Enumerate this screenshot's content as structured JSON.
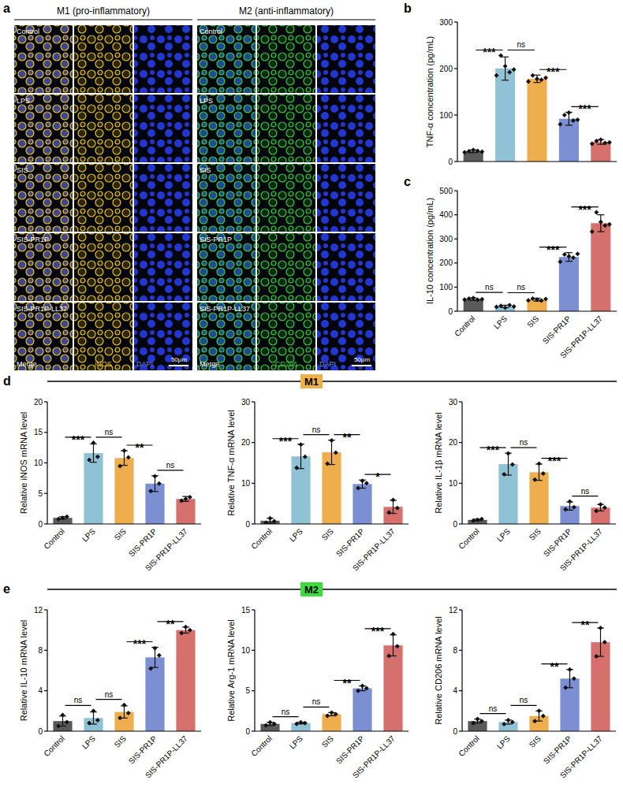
{
  "figure": {
    "letters": [
      "a",
      "b",
      "c",
      "d",
      "e"
    ],
    "groups": [
      "M1",
      "M2"
    ]
  },
  "panel_a": {
    "headers": [
      "M1 (pro-inflammatory)",
      "M2 (anti-inflammatory)"
    ],
    "rows": [
      "Control",
      "LPS",
      "SIS",
      "SIS-PR1P",
      "SIS-PR1P-LL37"
    ],
    "merge": "Merge",
    "markers": [
      "iNOS",
      "CD206"
    ],
    "dapi": "DAPI",
    "scale_bar": "50μm"
  },
  "chart_data": [
    {
      "type": "bar",
      "ylabel": "TNF-α concentration (pg/mL)",
      "categories": [
        "Control",
        "LPS",
        "SIS",
        "SIS-PR1P",
        "SIS-PR1P-LL37"
      ],
      "values": [
        22,
        200,
        178,
        92,
        42
      ],
      "errors": [
        3,
        25,
        8,
        14,
        5
      ],
      "points": [
        [
          20,
          22,
          25,
          23,
          21
        ],
        [
          185,
          228,
          205,
          192,
          198
        ],
        [
          172,
          185,
          178,
          176,
          180
        ],
        [
          80,
          100,
          105,
          88,
          90
        ],
        [
          38,
          44,
          47,
          40,
          41
        ]
      ],
      "colors": [
        "#5a5a5a",
        "#8fc2d5",
        "#efae4e",
        "#7c8fd3",
        "#d5706c"
      ],
      "ylim": [
        0,
        300
      ],
      "yticks": [
        0,
        100,
        200,
        300
      ],
      "tick_labels": "y",
      "significance": [
        {
          "from": "Control",
          "to": "LPS",
          "label": "***"
        },
        {
          "from": "LPS",
          "to": "SIS",
          "label": "ns"
        },
        {
          "from": "SIS",
          "to": "SIS-PR1P",
          "label": "***"
        },
        {
          "from": "SIS-PR1P",
          "to": "SIS-PR1P-LL37",
          "label": "***"
        }
      ]
    },
    {
      "type": "bar",
      "ylabel": "IL-10 concentration (pg/mL)",
      "categories": [
        "Control",
        "LPS",
        "SIS",
        "SIS-PR1P",
        "SIS-PR1P-LL37"
      ],
      "values": [
        50,
        20,
        48,
        225,
        365
      ],
      "errors": [
        5,
        5,
        6,
        18,
        35
      ],
      "points": [
        [
          48,
          52,
          55,
          47,
          50
        ],
        [
          18,
          22,
          15,
          25,
          20
        ],
        [
          45,
          52,
          48,
          44,
          51
        ],
        [
          205,
          235,
          228,
          222,
          238
        ],
        [
          330,
          410,
          370,
          355,
          360
        ]
      ],
      "colors": [
        "#5a5a5a",
        "#8fc2d5",
        "#efae4e",
        "#7c8fd3",
        "#d5706c"
      ],
      "ylim": [
        0,
        500
      ],
      "yticks": [
        0,
        100,
        200,
        300,
        400,
        500
      ],
      "significance": [
        {
          "from": "Control",
          "to": "LPS",
          "label": "ns"
        },
        {
          "from": "LPS",
          "to": "SIS",
          "label": "ns"
        },
        {
          "from": "SIS",
          "to": "SIS-PR1P",
          "label": "***"
        },
        {
          "from": "SIS-PR1P",
          "to": "SIS-PR1P-LL37",
          "label": "***"
        }
      ]
    },
    {
      "type": "bar",
      "ylabel": "Relative iNOS mRNA level",
      "categories": [
        "Control",
        "LPS",
        "SIS",
        "SIS-PR1P",
        "SIS-PR1P-LL37"
      ],
      "values": [
        1,
        11.6,
        10.8,
        6.6,
        4.1
      ],
      "errors": [
        0.2,
        1.5,
        1.2,
        1.3,
        0.4
      ],
      "points": [
        [
          0.8,
          1.0,
          1.2
        ],
        [
          10.5,
          13.3,
          11.0
        ],
        [
          9.5,
          12.0,
          10.9
        ],
        [
          5.4,
          7.8,
          6.6
        ],
        [
          3.8,
          4.1,
          4.4
        ]
      ],
      "colors": [
        "#5a5a5a",
        "#8fc2d5",
        "#efae4e",
        "#7c8fd3",
        "#d5706c"
      ],
      "ylim": [
        0,
        20
      ],
      "yticks": [
        0,
        5,
        10,
        15,
        20
      ],
      "significance": [
        {
          "from": "Control",
          "to": "LPS",
          "label": "***"
        },
        {
          "from": "LPS",
          "to": "SIS",
          "label": "ns"
        },
        {
          "from": "SIS",
          "to": "SIS-PR1P",
          "label": "**"
        },
        {
          "from": "SIS-PR1P",
          "to": "SIS-PR1P-LL37",
          "label": "ns"
        }
      ]
    },
    {
      "type": "bar",
      "ylabel": "Relative TNF-α mRNA level",
      "categories": [
        "Control",
        "LPS",
        "SIS",
        "SIS-PR1P",
        "SIS-PR1P-LL37"
      ],
      "values": [
        0.8,
        16.6,
        17.6,
        9.8,
        4.2
      ],
      "errors": [
        0.6,
        3,
        3,
        1,
        1.6
      ],
      "points": [
        [
          0.3,
          1.4,
          0.7
        ],
        [
          13.8,
          19.5,
          16.5
        ],
        [
          14.8,
          20.5,
          17.5
        ],
        [
          8.8,
          10.6,
          10.0
        ],
        [
          2.8,
          5.9,
          3.9
        ]
      ],
      "colors": [
        "#5a5a5a",
        "#8fc2d5",
        "#efae4e",
        "#7c8fd3",
        "#d5706c"
      ],
      "ylim": [
        0,
        30
      ],
      "yticks": [
        0,
        10,
        20,
        30
      ],
      "significance": [
        {
          "from": "Control",
          "to": "LPS",
          "label": "***"
        },
        {
          "from": "LPS",
          "to": "SIS",
          "label": "ns"
        },
        {
          "from": "SIS",
          "to": "SIS-PR1P",
          "label": "**"
        },
        {
          "from": "SIS-PR1P",
          "to": "SIS-PR1P-LL37",
          "label": "*"
        }
      ]
    },
    {
      "type": "bar",
      "ylabel": "Relative IL-1β mRNA level",
      "categories": [
        "Control",
        "LPS",
        "SIS",
        "SIS-PR1P",
        "SIS-PR1P-LL37"
      ],
      "values": [
        1,
        14.7,
        12.7,
        4.4,
        4.0
      ],
      "errors": [
        0.2,
        2.7,
        2,
        1,
        0.8
      ],
      "points": [
        [
          0.8,
          1.0,
          1.2
        ],
        [
          12.2,
          17.3,
          14.6
        ],
        [
          10.9,
          14.8,
          12.4
        ],
        [
          3.6,
          5.5,
          4.1
        ],
        [
          3.2,
          4.8,
          4.0
        ]
      ],
      "colors": [
        "#5a5a5a",
        "#8fc2d5",
        "#efae4e",
        "#7c8fd3",
        "#d5706c"
      ],
      "ylim": [
        0,
        30
      ],
      "yticks": [
        0,
        10,
        20,
        30
      ],
      "significance": [
        {
          "from": "Control",
          "to": "LPS",
          "label": "***"
        },
        {
          "from": "LPS",
          "to": "SIS",
          "label": "ns"
        },
        {
          "from": "SIS",
          "to": "SIS-PR1P",
          "label": "***"
        },
        {
          "from": "SIS-PR1P",
          "to": "SIS-PR1P-LL37",
          "label": "ns"
        }
      ]
    },
    {
      "type": "bar",
      "ylabel": "Relative IL-10 mRNA level",
      "categories": [
        "Control",
        "LPS",
        "SIS",
        "SIS-PR1P",
        "SIS-PR1P-LL37"
      ],
      "values": [
        1.0,
        1.3,
        1.9,
        7.3,
        10.0
      ],
      "errors": [
        0.5,
        0.6,
        0.6,
        1,
        0.3
      ],
      "points": [
        [
          0.5,
          1.6,
          0.9
        ],
        [
          0.8,
          2.0,
          1.1
        ],
        [
          1.3,
          2.6,
          1.8
        ],
        [
          6.2,
          8.2,
          7.5
        ],
        [
          9.7,
          10.3,
          10.0
        ]
      ],
      "colors": [
        "#5a5a5a",
        "#8fc2d5",
        "#efae4e",
        "#7c8fd3",
        "#d5706c"
      ],
      "ylim": [
        0,
        12
      ],
      "yticks": [
        0,
        4,
        8,
        12
      ],
      "significance": [
        {
          "from": "Control",
          "to": "LPS",
          "label": "ns"
        },
        {
          "from": "LPS",
          "to": "SIS",
          "label": "ns"
        },
        {
          "from": "SIS",
          "to": "SIS-PR1P",
          "label": "***"
        },
        {
          "from": "SIS-PR1P",
          "to": "SIS-PR1P-LL37",
          "label": "**"
        }
      ]
    },
    {
      "type": "bar",
      "ylabel": "Relative Arg-1 mRNA level",
      "categories": [
        "Control",
        "LPS",
        "SIS",
        "SIS-PR1P",
        "SIS-PR1P-LL37"
      ],
      "values": [
        0.9,
        1.0,
        2.1,
        5.3,
        10.6
      ],
      "errors": [
        0.2,
        0.1,
        0.2,
        0.3,
        1.3
      ],
      "points": [
        [
          0.7,
          1.1,
          0.9
        ],
        [
          0.9,
          1.1,
          1.0
        ],
        [
          1.9,
          2.3,
          2.1
        ],
        [
          5.0,
          5.6,
          5.3
        ],
        [
          9.3,
          12.0,
          10.5
        ]
      ],
      "colors": [
        "#5a5a5a",
        "#8fc2d5",
        "#efae4e",
        "#7c8fd3",
        "#d5706c"
      ],
      "ylim": [
        0,
        15
      ],
      "yticks": [
        0,
        5,
        10,
        15
      ],
      "significance": [
        {
          "from": "Control",
          "to": "LPS",
          "label": "ns"
        },
        {
          "from": "LPS",
          "to": "SIS",
          "label": "ns"
        },
        {
          "from": "SIS",
          "to": "SIS-PR1P",
          "label": "**"
        },
        {
          "from": "SIS-PR1P",
          "to": "SIS-PR1P-LL37",
          "label": "***"
        }
      ]
    },
    {
      "type": "bar",
      "ylabel": "Relative CD206 mRNA level",
      "categories": [
        "Control",
        "LPS",
        "SIS",
        "SIS-PR1P",
        "SIS-PR1P-LL37"
      ],
      "values": [
        1.0,
        0.9,
        1.5,
        5.2,
        8.8
      ],
      "errors": [
        0.2,
        0.2,
        0.5,
        0.9,
        1.4
      ],
      "points": [
        [
          0.8,
          1.2,
          1.0
        ],
        [
          0.7,
          1.1,
          0.9
        ],
        [
          1.0,
          2.0,
          1.5
        ],
        [
          4.3,
          6.1,
          5.2
        ],
        [
          7.4,
          10.2,
          8.8
        ]
      ],
      "colors": [
        "#5a5a5a",
        "#8fc2d5",
        "#efae4e",
        "#7c8fd3",
        "#d5706c"
      ],
      "ylim": [
        0,
        12
      ],
      "yticks": [
        0,
        4,
        8,
        12
      ],
      "significance": [
        {
          "from": "Control",
          "to": "LPS",
          "label": "ns"
        },
        {
          "from": "LPS",
          "to": "SIS",
          "label": "ns"
        },
        {
          "from": "SIS",
          "to": "SIS-PR1P",
          "label": "**"
        },
        {
          "from": "SIS-PR1P",
          "to": "SIS-PR1P-LL37",
          "label": "**"
        }
      ]
    }
  ]
}
